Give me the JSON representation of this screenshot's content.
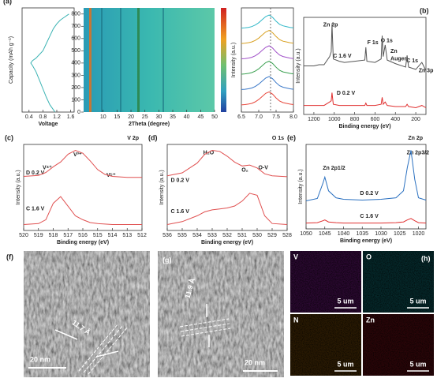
{
  "chart_data": [
    {
      "type": "line",
      "label": "(a)",
      "ylabel": "Capacity (mAh g⁻¹)",
      "xlabel": "Voltage",
      "xlim": [
        0.2,
        1.7
      ],
      "xticks": [
        0.4,
        0.8,
        1.2,
        1.6
      ],
      "ylim": [
        0,
        850
      ],
      "x": [
        1.55,
        1.5,
        1.4,
        1.3,
        1.2,
        1.1,
        1.0,
        0.9,
        0.8,
        0.6,
        0.5,
        0.45,
        0.5,
        0.6,
        0.7,
        0.8,
        0.9,
        1.0,
        1.1,
        1.15
      ],
      "series": [
        {
          "color": "#3bb3b3",
          "values": [
            800,
            790,
            770,
            750,
            720,
            680,
            620,
            560,
            500,
            440,
            420,
            400,
            380,
            330,
            260,
            190,
            120,
            60,
            20,
            0
          ]
        }
      ]
    },
    {
      "type": "heatmap",
      "xlabel": "2Theta (degree)",
      "colorbar_label": "Intensity (a.u.)",
      "xlim": [
        3,
        50
      ],
      "xticks": [
        10,
        15,
        20,
        25,
        30,
        35,
        40,
        45,
        50
      ],
      "ylim": [
        0,
        850
      ],
      "yticks": [
        0,
        100,
        200,
        300,
        400,
        500,
        600,
        700,
        800
      ]
    },
    {
      "type": "line",
      "xlim": [
        6.5,
        8.0
      ],
      "xticks": [
        6.5,
        {
          "value": 7,
          "label": "7.0"
        },
        7.5,
        {
          "value": 8,
          "label": "8.0"
        }
      ],
      "x": [
        6.5,
        6.6,
        6.7,
        6.8,
        6.9,
        7.0,
        7.1,
        7.2,
        7.3,
        7.4,
        7.5,
        7.6,
        7.7,
        7.8,
        7.9,
        8.0
      ],
      "series": [
        {
          "color": "#e8483c",
          "values": [
            0.1,
            0.12,
            0.15,
            0.2,
            0.3,
            0.45,
            0.65,
            0.85,
            0.95,
            0.8,
            0.55,
            0.35,
            0.25,
            0.2,
            0.15,
            0.12
          ]
        },
        {
          "color": "#3a78c8",
          "values": [
            1.1,
            1.12,
            1.15,
            1.2,
            1.3,
            1.45,
            1.65,
            1.85,
            1.95,
            1.8,
            1.55,
            1.35,
            1.25,
            1.2,
            1.15,
            1.12
          ]
        },
        {
          "color": "#3aa050",
          "values": [
            2.1,
            2.12,
            2.15,
            2.2,
            2.3,
            2.45,
            2.65,
            2.85,
            2.95,
            2.8,
            2.55,
            2.35,
            2.25,
            2.2,
            2.15,
            2.12
          ]
        },
        {
          "color": "#a050c8",
          "values": [
            3.1,
            3.12,
            3.15,
            3.2,
            3.3,
            3.45,
            3.65,
            3.85,
            3.95,
            3.8,
            3.55,
            3.35,
            3.25,
            3.2,
            3.15,
            3.12
          ]
        },
        {
          "color": "#d8a020",
          "values": [
            4.1,
            4.12,
            4.15,
            4.2,
            4.3,
            4.45,
            4.65,
            4.85,
            4.95,
            4.8,
            4.55,
            4.35,
            4.25,
            4.2,
            4.15,
            4.12
          ]
        },
        {
          "color": "#30b8c8",
          "values": [
            5.1,
            5.12,
            5.15,
            5.2,
            5.3,
            5.45,
            5.65,
            5.85,
            5.95,
            5.8,
            5.55,
            5.35,
            5.25,
            5.2,
            5.15,
            5.12
          ]
        }
      ]
    },
    {
      "type": "line",
      "label": "(b)",
      "ylabel": "Intensity (a.u.)",
      "xlabel": "Binding energy (eV)",
      "xlim": [
        1300,
        100
      ],
      "xticks": [
        1200,
        1000,
        800,
        600,
        400,
        200
      ],
      "annotations": [
        "Zn 2p",
        "F 1s",
        "O 1s",
        "Zn",
        "Auger",
        "C 1s",
        "Zn 3p",
        "C 1.6 V",
        "D 0.2 V"
      ],
      "x": [
        1300,
        1250,
        1200,
        1150,
        1100,
        1045,
        1030,
        1022,
        1010,
        950,
        900,
        800,
        700,
        690,
        680,
        600,
        540,
        530,
        520,
        500,
        480,
        400,
        300,
        285,
        270,
        200,
        140,
        100
      ],
      "series": [
        {
          "color": "#555555",
          "values": [
            5.0,
            5.0,
            5.0,
            5.1,
            5.1,
            5.8,
            6.2,
            8.6,
            5.6,
            5.4,
            5.3,
            5.4,
            5.5,
            6.6,
            5.4,
            5.3,
            5.6,
            7.6,
            5.8,
            6.8,
            5.5,
            5.2,
            4.9,
            5.9,
            4.9,
            4.7,
            5.3,
            4.6
          ]
        },
        {
          "color": "#e03030",
          "values": [
            1.6,
            1.6,
            1.6,
            1.6,
            1.6,
            1.9,
            2.0,
            2.7,
            1.7,
            1.6,
            1.6,
            1.6,
            1.6,
            1.8,
            1.6,
            1.6,
            1.7,
            2.3,
            1.7,
            1.9,
            1.6,
            1.5,
            1.5,
            1.7,
            1.5,
            1.4,
            1.6,
            1.4
          ]
        }
      ]
    },
    {
      "type": "line",
      "label": "(c)",
      "title": "V 2p",
      "ylabel": "Intensity (a.u.)",
      "xlabel": "Binding energy (eV)",
      "xlim": [
        520,
        512
      ],
      "xticks": [
        520,
        519,
        518,
        517,
        516,
        515,
        514,
        513,
        512
      ],
      "annotations": [
        "V⁴⁺",
        "V³⁺",
        "V⁵⁺",
        "D 0.2 V",
        "C 1.6 V"
      ],
      "x": [
        520,
        519,
        518.5,
        518,
        517.5,
        517,
        516.5,
        516,
        515.5,
        515,
        514.5,
        514,
        513,
        512
      ],
      "series": [
        {
          "color": "#e05050",
          "values": [
            5.3,
            5.4,
            5.7,
            6.3,
            6.8,
            7.6,
            8.0,
            7.7,
            6.9,
            6.0,
            5.5,
            5.3,
            5.2,
            5.2
          ]
        },
        {
          "color": "#e05050",
          "values": [
            0.3,
            0.4,
            0.8,
            2.5,
            3.2,
            2.2,
            1.2,
            0.8,
            0.5,
            0.4,
            0.35,
            0.3,
            0.3,
            0.3
          ]
        }
      ]
    },
    {
      "type": "line",
      "label": "(d)",
      "title": "O 1s",
      "ylabel": "Intensity (a.u.)",
      "xlabel": "Binding energy (eV)",
      "xlim": [
        536,
        528
      ],
      "xticks": [
        536,
        535,
        534,
        533,
        532,
        531,
        530,
        529,
        528
      ],
      "annotations": [
        "H₂O",
        "O₂",
        "O-V",
        "D 0.2 V",
        "C 1.6 V"
      ],
      "x": [
        536,
        535,
        534,
        533.5,
        533,
        532.5,
        532,
        531.5,
        531,
        530.5,
        530,
        529.5,
        529,
        528
      ],
      "series": [
        {
          "color": "#e05050",
          "values": [
            5.3,
            5.6,
            6.6,
            7.5,
            7.9,
            7.8,
            7.3,
            6.7,
            6.3,
            6.4,
            6.1,
            5.5,
            5.3,
            5.2
          ]
        },
        {
          "color": "#e05050",
          "values": [
            0.3,
            0.6,
            1.2,
            1.6,
            1.8,
            1.9,
            2.0,
            2.2,
            2.7,
            3.5,
            3.3,
            1.2,
            0.4,
            0.3
          ]
        }
      ]
    },
    {
      "type": "line",
      "label": "(e)",
      "title": "Zn 2p",
      "ylabel": "Intensity (a.u.)",
      "xlabel": "Binding energy (eV)",
      "xlim": [
        1050,
        1018
      ],
      "xticks": [
        1050,
        1045,
        1040,
        1035,
        1030,
        1025,
        1020
      ],
      "annotations": [
        "Zn 2p1/2",
        "Zn 2p3/2",
        "D 0.2 V",
        "C 1.6 V"
      ],
      "x": [
        1050,
        1047,
        1045.5,
        1045,
        1044,
        1042,
        1040,
        1035,
        1030,
        1026,
        1024,
        1023,
        1022,
        1021,
        1020,
        1018
      ],
      "series": [
        {
          "color": "#2a70c0",
          "values": [
            3.2,
            3.5,
            5.5,
            6.3,
            4.5,
            3.6,
            3.4,
            3.3,
            3.4,
            3.6,
            4.5,
            7.5,
            9.8,
            6.0,
            3.6,
            3.3
          ]
        },
        {
          "color": "#e03030",
          "values": [
            0.3,
            0.35,
            0.6,
            0.7,
            0.45,
            0.35,
            0.3,
            0.3,
            0.3,
            0.35,
            0.45,
            0.7,
            0.9,
            0.6,
            0.35,
            0.3
          ]
        }
      ]
    }
  ],
  "images": {
    "f": {
      "label": "(f)",
      "spacing": "11.7 Å",
      "scale": "20 nm"
    },
    "g": {
      "label": "(g)",
      "spacing": "11.9 Å",
      "scale": "20 nm"
    },
    "h": {
      "label": "(h)",
      "maps": [
        {
          "element": "V",
          "scale": "5 um"
        },
        {
          "element": "O",
          "scale": "5 um"
        },
        {
          "element": "N",
          "scale": "5 um"
        },
        {
          "element": "Zn",
          "scale": "5 um"
        }
      ]
    }
  }
}
